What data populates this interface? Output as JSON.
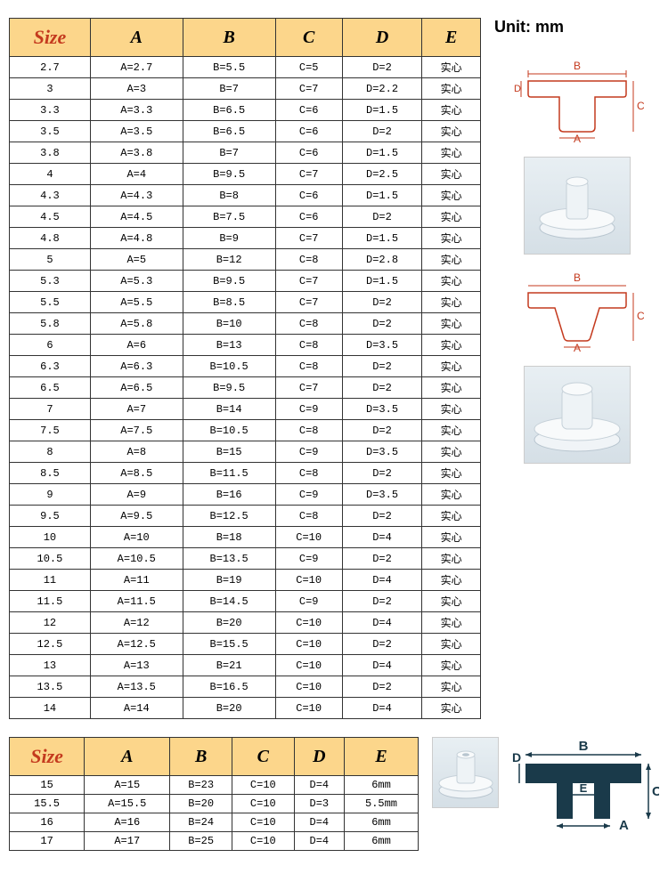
{
  "unit_label": "Unit: mm",
  "table1": {
    "headers": [
      "Size",
      "A",
      "B",
      "C",
      "D",
      "E"
    ],
    "header_bg": "#fcd68b",
    "size_color": "#c43a1e",
    "border_color": "#333333",
    "rows": [
      [
        "2.7",
        "A=2.7",
        "B=5.5",
        "C=5",
        "D=2",
        "实心"
      ],
      [
        "3",
        "A=3",
        "B=7",
        "C=7",
        "D=2.2",
        "实心"
      ],
      [
        "3.3",
        "A=3.3",
        "B=6.5",
        "C=6",
        "D=1.5",
        "实心"
      ],
      [
        "3.5",
        "A=3.5",
        "B=6.5",
        "C=6",
        "D=2",
        "实心"
      ],
      [
        "3.8",
        "A=3.8",
        "B=7",
        "C=6",
        "D=1.5",
        "实心"
      ],
      [
        "4",
        "A=4",
        "B=9.5",
        "C=7",
        "D=2.5",
        "实心"
      ],
      [
        "4.3",
        "A=4.3",
        "B=8",
        "C=6",
        "D=1.5",
        "实心"
      ],
      [
        "4.5",
        "A=4.5",
        "B=7.5",
        "C=6",
        "D=2",
        "实心"
      ],
      [
        "4.8",
        "A=4.8",
        "B=9",
        "C=7",
        "D=1.5",
        "实心"
      ],
      [
        "5",
        "A=5",
        "B=12",
        "C=8",
        "D=2.8",
        "实心"
      ],
      [
        "5.3",
        "A=5.3",
        "B=9.5",
        "C=7",
        "D=1.5",
        "实心"
      ],
      [
        "5.5",
        "A=5.5",
        "B=8.5",
        "C=7",
        "D=2",
        "实心"
      ],
      [
        "5.8",
        "A=5.8",
        "B=10",
        "C=8",
        "D=2",
        "实心"
      ],
      [
        "6",
        "A=6",
        "B=13",
        "C=8",
        "D=3.5",
        "实心"
      ],
      [
        "6.3",
        "A=6.3",
        "B=10.5",
        "C=8",
        "D=2",
        "实心"
      ],
      [
        "6.5",
        "A=6.5",
        "B=9.5",
        "C=7",
        "D=2",
        "实心"
      ],
      [
        "7",
        "A=7",
        "B=14",
        "C=9",
        "D=3.5",
        "实心"
      ],
      [
        "7.5",
        "A=7.5",
        "B=10.5",
        "C=8",
        "D=2",
        "实心"
      ],
      [
        "8",
        "A=8",
        "B=15",
        "C=9",
        "D=3.5",
        "实心"
      ],
      [
        "8.5",
        "A=8.5",
        "B=11.5",
        "C=8",
        "D=2",
        "实心"
      ],
      [
        "9",
        "A=9",
        "B=16",
        "C=9",
        "D=3.5",
        "实心"
      ],
      [
        "9.5",
        "A=9.5",
        "B=12.5",
        "C=8",
        "D=2",
        "实心"
      ],
      [
        "10",
        "A=10",
        "B=18",
        "C=10",
        "D=4",
        "实心"
      ],
      [
        "10.5",
        "A=10.5",
        "B=13.5",
        "C=9",
        "D=2",
        "实心"
      ],
      [
        "11",
        "A=11",
        "B=19",
        "C=10",
        "D=4",
        "实心"
      ],
      [
        "11.5",
        "A=11.5",
        "B=14.5",
        "C=9",
        "D=2",
        "实心"
      ],
      [
        "12",
        "A=12",
        "B=20",
        "C=10",
        "D=4",
        "实心"
      ],
      [
        "12.5",
        "A=12.5",
        "B=15.5",
        "C=10",
        "D=2",
        "实心"
      ],
      [
        "13",
        "A=13",
        "B=21",
        "C=10",
        "D=4",
        "实心"
      ],
      [
        "13.5",
        "A=13.5",
        "B=16.5",
        "C=10",
        "D=2",
        "实心"
      ],
      [
        "14",
        "A=14",
        "B=20",
        "C=10",
        "D=4",
        "实心"
      ]
    ]
  },
  "table2": {
    "headers": [
      "Size",
      "A",
      "B",
      "C",
      "D",
      "E"
    ],
    "rows": [
      [
        "15",
        "A=15",
        "B=23",
        "C=10",
        "D=4",
        "6mm"
      ],
      [
        "15.5",
        "A=15.5",
        "B=20",
        "C=10",
        "D=3",
        "5.5mm"
      ],
      [
        "16",
        "A=16",
        "B=24",
        "C=10",
        "D=4",
        "6mm"
      ],
      [
        "17",
        "A=17",
        "B=25",
        "C=10",
        "D=4",
        "6mm"
      ]
    ]
  },
  "diagram1": {
    "type": "cross-section-t-plug-solid",
    "labels": {
      "top": "B",
      "left": "D",
      "right": "C",
      "bottom": "A"
    },
    "stroke_color": "#c43a1e",
    "fill_color": "#ffffff"
  },
  "diagram2": {
    "type": "cross-section-t-plug-tapered",
    "labels": {
      "top": "B",
      "right": "C",
      "bottom": "A"
    },
    "stroke_color": "#c43a1e",
    "fill_color": "#ffffff"
  },
  "diagram3": {
    "type": "cross-section-t-plug-hollow",
    "labels": {
      "top": "B",
      "left": "D",
      "right": "C",
      "center": "E",
      "bottom": "A"
    },
    "fill_color": "#1a3a4a",
    "text_color": "#1a3a4a"
  }
}
